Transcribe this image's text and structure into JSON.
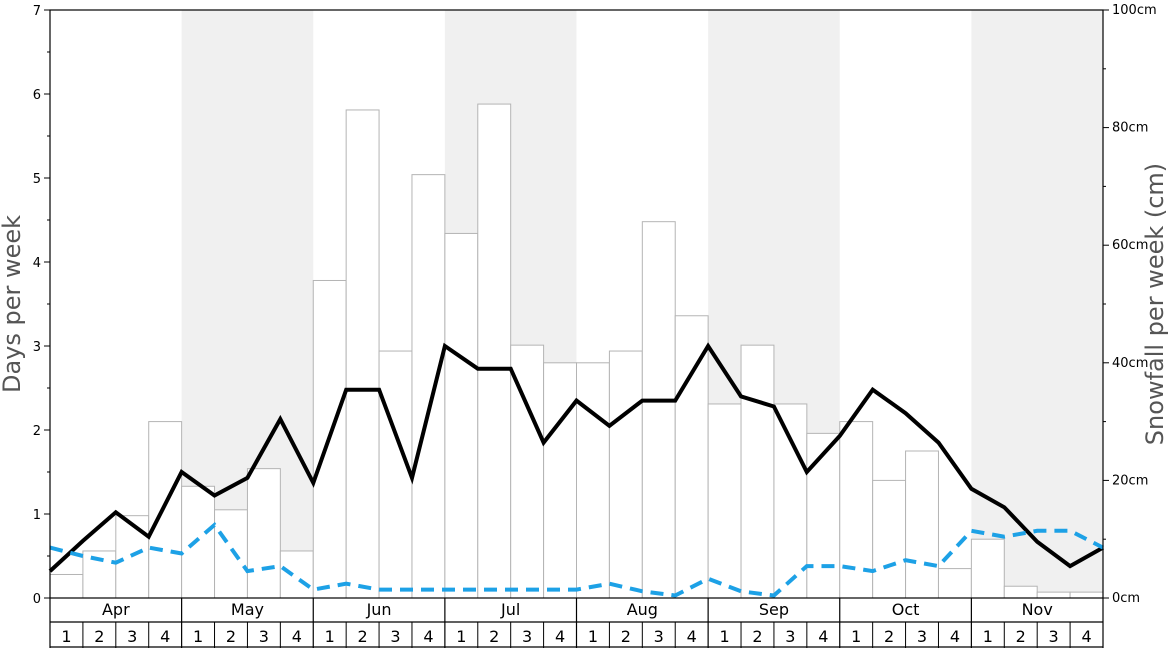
{
  "chart_data": {
    "type": "bar",
    "months": [
      "Apr",
      "May",
      "Jun",
      "Jul",
      "Aug",
      "Sep",
      "Oct",
      "Nov"
    ],
    "weeks_per_month": [
      "1",
      "2",
      "3",
      "4"
    ],
    "shaded_months": [
      false,
      true,
      false,
      true,
      false,
      true,
      false,
      true
    ],
    "y_left": {
      "label": "Days per week",
      "lim": [
        0,
        7
      ],
      "ticks": [
        "0",
        "1",
        "2",
        "3",
        "4",
        "5",
        "6",
        "7"
      ]
    },
    "y_right": {
      "label": "Snowfall per week (cm)",
      "lim": [
        0,
        100
      ],
      "ticks": [
        "0cm",
        "20cm",
        "40cm",
        "60cm",
        "80cm",
        "100cm"
      ]
    },
    "colors": {
      "bar_fill": "#ffffff",
      "bar_stroke": "#b4b4b4",
      "shade": "#f0f0f0",
      "solid_line": "#000000",
      "dashed_line": "#1da1e6"
    },
    "series": [
      {
        "kind": "bar",
        "axis": "right",
        "values": [
          4,
          8,
          14,
          30,
          19,
          15,
          22,
          8,
          54,
          83,
          42,
          72,
          62,
          84,
          43,
          40,
          40,
          42,
          64,
          48,
          33,
          43,
          33,
          28,
          30,
          20,
          25,
          5,
          10,
          2,
          1,
          1
        ]
      },
      {
        "kind": "line",
        "style": "solid",
        "axis": "left",
        "values": [
          0.32,
          0.68,
          1.02,
          0.73,
          1.5,
          1.22,
          1.43,
          2.13,
          1.37,
          2.48,
          2.48,
          1.43,
          3.0,
          2.73,
          2.73,
          1.85,
          2.35,
          2.05,
          2.35,
          2.35,
          3.0,
          2.4,
          2.28,
          1.5,
          1.93,
          2.48,
          2.2,
          1.85,
          1.3,
          1.08,
          0.67,
          0.38,
          0.6
        ]
      },
      {
        "kind": "line",
        "style": "dashed",
        "axis": "left",
        "values": [
          0.6,
          0.5,
          0.42,
          0.6,
          0.53,
          0.87,
          0.32,
          0.38,
          0.1,
          0.17,
          0.1,
          0.1,
          0.1,
          0.1,
          0.1,
          0.1,
          0.1,
          0.17,
          0.08,
          0.03,
          0.23,
          0.08,
          0.03,
          0.38,
          0.38,
          0.32,
          0.45,
          0.38,
          0.8,
          0.73,
          0.8,
          0.8,
          0.6
        ]
      }
    ]
  }
}
